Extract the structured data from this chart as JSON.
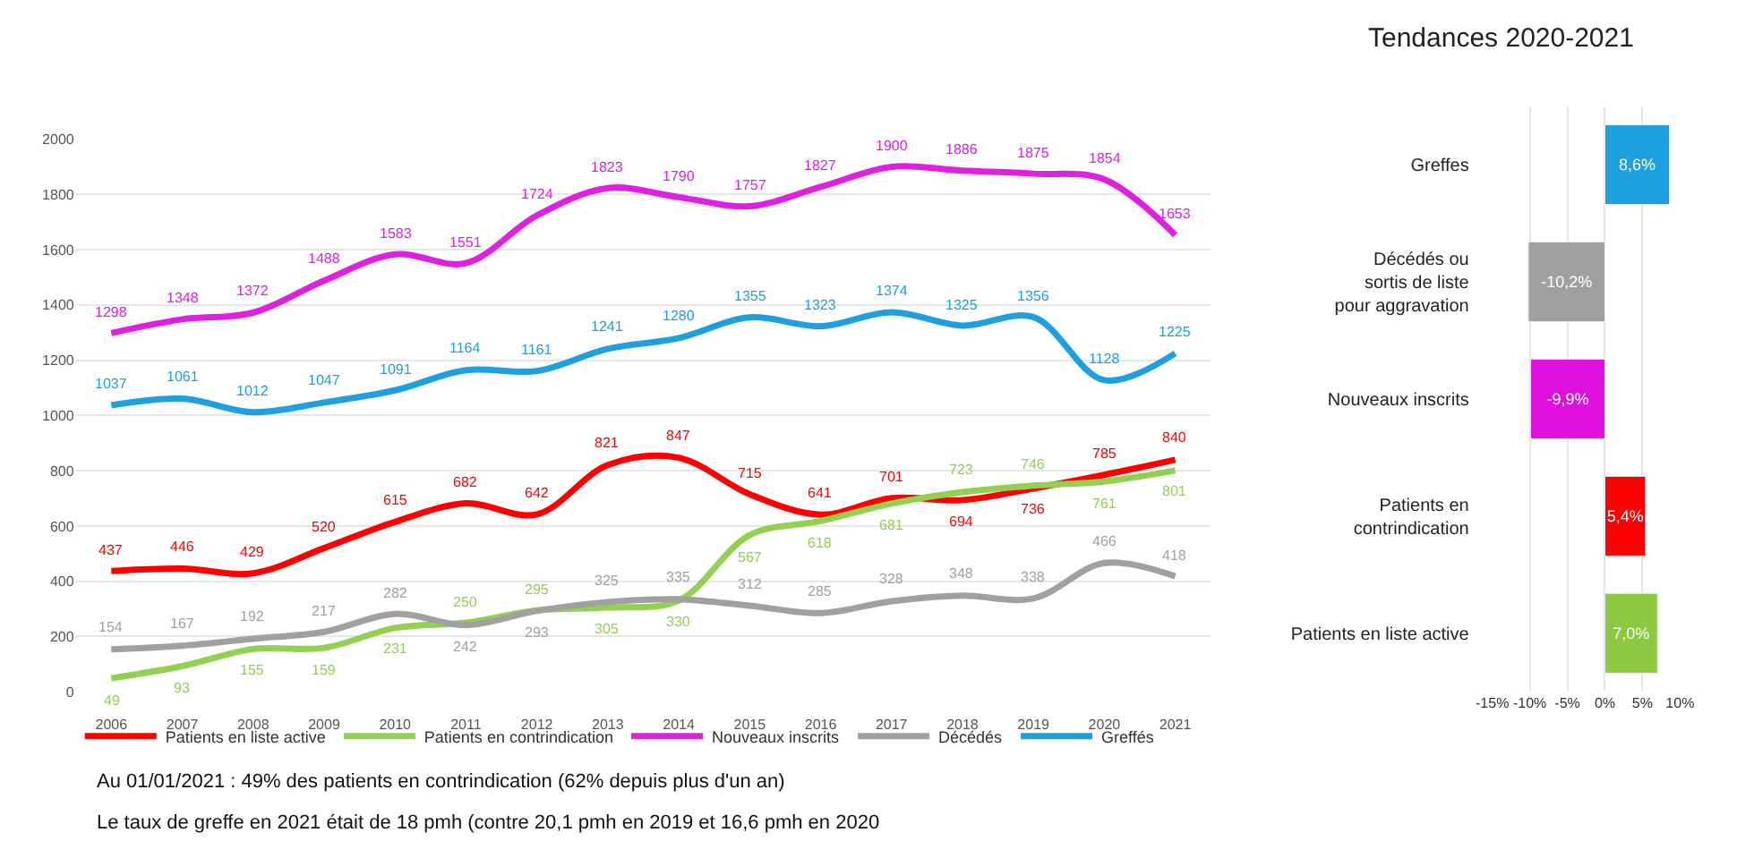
{
  "chart_data": [
    {
      "type": "line",
      "categories": [
        "2006",
        "2007",
        "2008",
        "2009",
        "2010",
        "2011",
        "2012",
        "2013",
        "2014",
        "2015",
        "2016",
        "2017",
        "2018",
        "2019",
        "2020",
        "2021"
      ],
      "series": [
        {
          "name": "Patients en liste active",
          "color": "#ff0000",
          "values": [
            437,
            446,
            429,
            520,
            615,
            682,
            642,
            821,
            847,
            715,
            641,
            701,
            694,
            736,
            785,
            840
          ]
        },
        {
          "name": "Patients en contrindication",
          "color": "#92d050",
          "values": [
            49,
            93,
            155,
            159,
            231,
            250,
            295,
            305,
            330,
            567,
            618,
            681,
            723,
            746,
            761,
            801
          ]
        },
        {
          "name": "Nouveaux inscrits",
          "color": "#e020e0",
          "values": [
            1298,
            1348,
            1372,
            1488,
            1583,
            1551,
            1724,
            1823,
            1790,
            1757,
            1827,
            1900,
            1886,
            1875,
            1854,
            1653
          ]
        },
        {
          "name": "Décédés",
          "color": "#a0a0a0",
          "values": [
            154,
            167,
            192,
            217,
            282,
            242,
            293,
            325,
            335,
            312,
            285,
            328,
            348,
            338,
            466,
            418
          ]
        },
        {
          "name": "Greffés",
          "color": "#1ea0e0",
          "values": [
            1037,
            1061,
            1012,
            1047,
            1091,
            1164,
            1161,
            1241,
            1280,
            1355,
            1323,
            1374,
            1325,
            1356,
            1128,
            1225
          ]
        }
      ],
      "ylim": [
        0,
        2000
      ],
      "yticks": [
        0,
        200,
        400,
        600,
        800,
        1000,
        1200,
        1400,
        1600,
        1800,
        2000
      ],
      "grid": "y",
      "legend": "bottom",
      "data_labels": true,
      "marker": "none",
      "line_style": "solid",
      "annotations": [
        "Au 01/01/2021 : 49% des patients en contrindication (62% depuis plus d'un an)",
        "Le taux de greffe en 2021 était de 18 pmh (contre 20,1 pmh en 2019 et 16,6 pmh en 2020"
      ]
    },
    {
      "type": "bar",
      "orientation": "horizontal",
      "title": "Tendances 2020-2021",
      "categories": [
        "Greffes",
        "Décédés ou\nsortis de liste\n pour aggravation",
        "Nouveaux inscrits",
        "Patients en\ncontrindication",
        "Patients en liste active"
      ],
      "values": [
        8.6,
        -10.2,
        -9.9,
        5.4,
        7.0
      ],
      "colors": [
        "#1ea0e0",
        "#a0a0a0",
        "#e010e0",
        "#ff0000",
        "#8cc840"
      ],
      "value_labels": [
        "8,6%",
        "-10,2%",
        "-9,9%",
        "5,4%",
        "7,0%"
      ],
      "xlim": [
        -15,
        10
      ],
      "xticks": [
        {
          "value": -15,
          "label": "-15%"
        },
        {
          "value": -10,
          "label": "-10%"
        },
        {
          "value": -5,
          "label": "-5%"
        },
        {
          "value": 0,
          "label": "0%"
        },
        {
          "value": 5,
          "label": "5%"
        },
        {
          "value": 10,
          "label": "10%"
        }
      ],
      "grid": "x"
    }
  ]
}
